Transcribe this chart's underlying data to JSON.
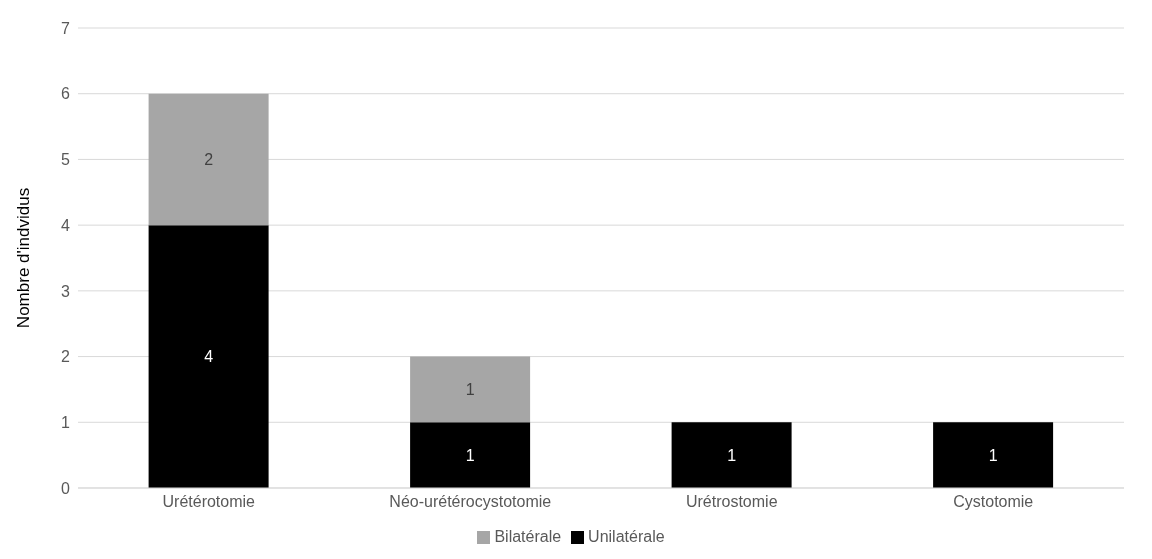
{
  "chart_data": {
    "type": "bar",
    "stacked": true,
    "ylabel": "Nombre d'indvidus",
    "categories": [
      "Urétérotomie",
      "Néo-urétérocystotomie",
      "Urétrostomie",
      "Cystotomie"
    ],
    "series": [
      {
        "name": "Unilatérale",
        "color": "#000000",
        "values": [
          4,
          1,
          1,
          1
        ]
      },
      {
        "name": "Bilatérale",
        "color": "#a6a6a6",
        "values": [
          2,
          1,
          null,
          null
        ]
      }
    ],
    "ylim": [
      0,
      7
    ],
    "yticks": [
      0,
      1,
      2,
      3,
      4,
      5,
      6,
      7
    ],
    "grid": "y",
    "legend": "bottom",
    "data_labels": true
  }
}
